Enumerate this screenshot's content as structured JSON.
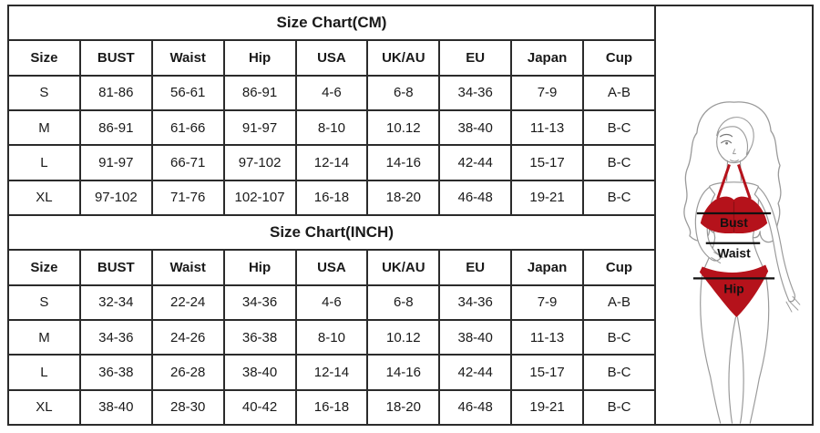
{
  "page": {
    "background": "#ffffff",
    "border_color": "#2b2b2b"
  },
  "chart_data": [
    {
      "type": "table",
      "title": "Size Chart(CM)",
      "columns": [
        "Size",
        "BUST",
        "Waist",
        "Hip",
        "USA",
        "UK/AU",
        "EU",
        "Japan",
        "Cup"
      ],
      "rows": [
        [
          "S",
          "81-86",
          "56-61",
          "86-91",
          "4-6",
          "6-8",
          "34-36",
          "7-9",
          "A-B"
        ],
        [
          "M",
          "86-91",
          "61-66",
          "91-97",
          "8-10",
          "10.12",
          "38-40",
          "11-13",
          "B-C"
        ],
        [
          "L",
          "91-97",
          "66-71",
          "97-102",
          "12-14",
          "14-16",
          "42-44",
          "15-17",
          "B-C"
        ],
        [
          "XL",
          "97-102",
          "71-76",
          "102-107",
          "16-18",
          "18-20",
          "46-48",
          "19-21",
          "B-C"
        ]
      ]
    },
    {
      "type": "table",
      "title": "Size Chart(INCH)",
      "columns": [
        "Size",
        "BUST",
        "Waist",
        "Hip",
        "USA",
        "UK/AU",
        "EU",
        "Japan",
        "Cup"
      ],
      "rows": [
        [
          "S",
          "32-34",
          "22-24",
          "34-36",
          "4-6",
          "6-8",
          "34-36",
          "7-9",
          "A-B"
        ],
        [
          "M",
          "34-36",
          "24-26",
          "36-38",
          "8-10",
          "10.12",
          "38-40",
          "11-13",
          "B-C"
        ],
        [
          "L",
          "36-38",
          "26-28",
          "38-40",
          "12-14",
          "14-16",
          "42-44",
          "15-17",
          "B-C"
        ],
        [
          "XL",
          "38-40",
          "28-30",
          "40-42",
          "16-18",
          "18-20",
          "46-48",
          "19-21",
          "B-C"
        ]
      ]
    }
  ],
  "figure": {
    "labels": {
      "bust": "Bust",
      "waist": "Waist",
      "hip": "Hip"
    },
    "bikini_color": "#b5121b",
    "bikini_shade": "#8c0e13",
    "outline_color": "#9a9a9a",
    "measure_line_color": "#111111"
  }
}
